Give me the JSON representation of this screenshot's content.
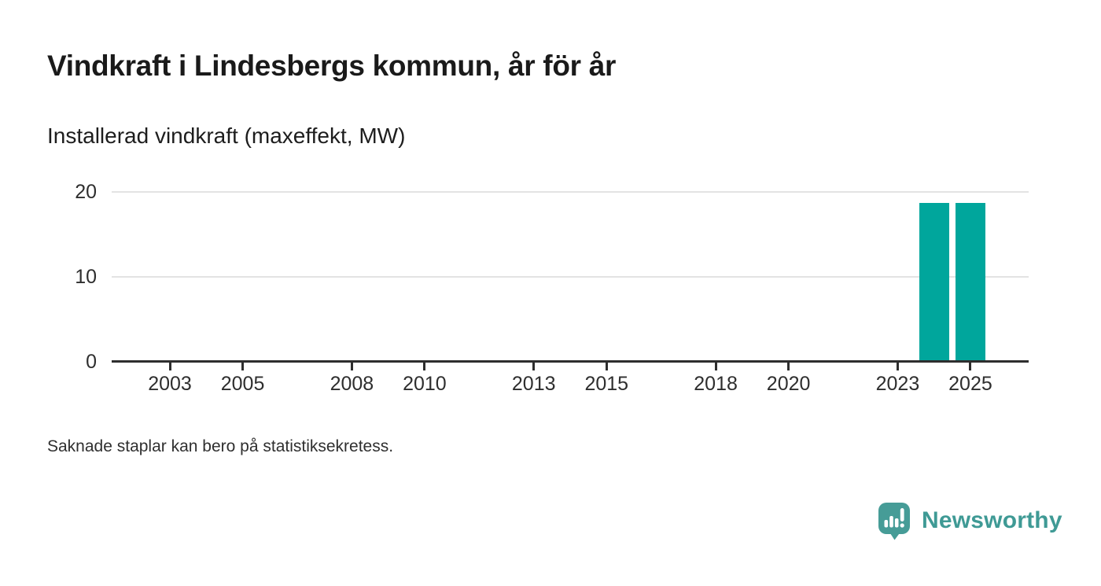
{
  "header": {
    "title": "Vindkraft i Lindesbergs kommun, år för år",
    "subtitle": "Installerad vindkraft (maxeffekt, MW)"
  },
  "footnote": "Saknade staplar kan bero på statistiksekretess.",
  "branding": {
    "name": "Newsworthy",
    "icon": "newsworthy-speech-bubble-bar-chart-icon"
  },
  "colors": {
    "bar": "#00a69c",
    "brand": "#3f9a95",
    "gridline": "#e3e3e3",
    "axis": "#2e2e2e",
    "text": "#1a1a1a"
  },
  "chart_data": {
    "type": "bar",
    "title": "Vindkraft i Lindesbergs kommun, år för år",
    "subtitle_unit": "Installerad vindkraft (maxeffekt, MW)",
    "series": [
      {
        "name": "Installerad vindkraft (maxeffekt, MW)",
        "points": [
          {
            "x": 2024,
            "y": 18.7
          },
          {
            "x": 2025,
            "y": 18.7
          }
        ]
      }
    ],
    "x_ticks": [
      2003,
      2005,
      2008,
      2010,
      2013,
      2015,
      2018,
      2020,
      2023,
      2025
    ],
    "y_ticks": [
      0,
      10,
      20
    ],
    "xlim": [
      2001.4,
      2026.6
    ],
    "ylim": [
      0,
      20
    ],
    "bar_width_years": 0.82,
    "grid": "horizontal",
    "legend": "none"
  }
}
